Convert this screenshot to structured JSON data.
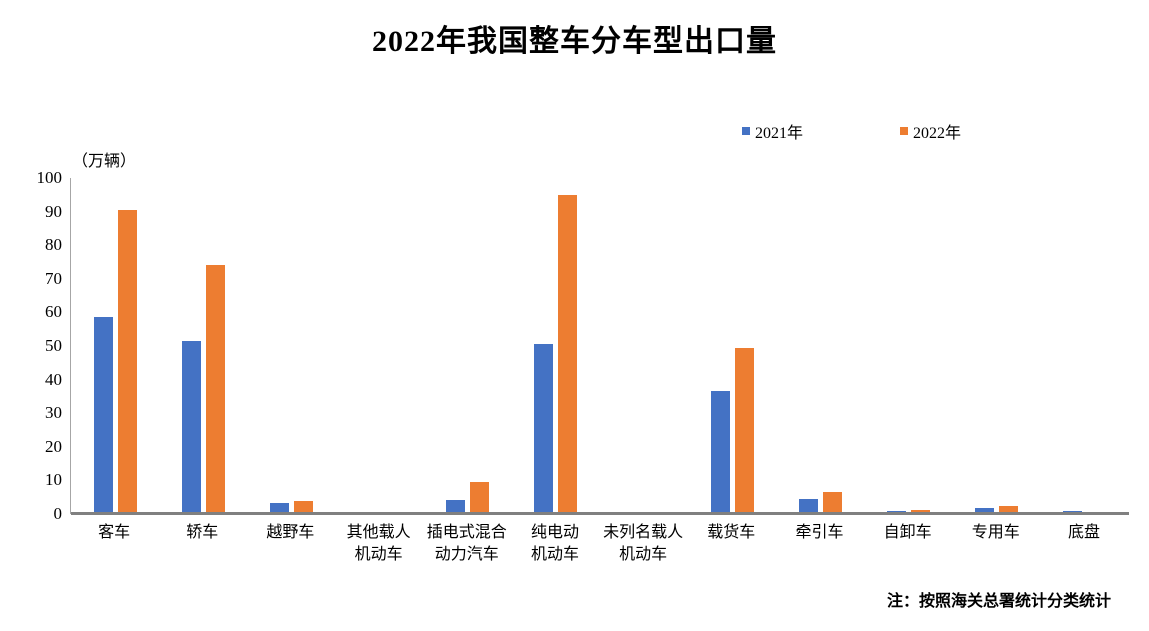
{
  "chart_data": {
    "type": "bar",
    "title": "2022年我国整车分车型出口量",
    "unit_label": "（万辆）",
    "footnote": "注：按照海关总署统计分类统计",
    "ylim": [
      0,
      100
    ],
    "ytick_step": 10,
    "grid": false,
    "legend_position": "top-right",
    "axis_color": "#808080",
    "categories": [
      "客车",
      "轿车",
      "越野车",
      "其他载人\n机动车",
      "插电式混合\n动力汽车",
      "纯电动\n机动车",
      "未列名载人\n机动车",
      "载货车",
      "牵引车",
      "自卸车",
      "专用车",
      "底盘"
    ],
    "series": [
      {
        "name": "2021年",
        "color": "#4472C4",
        "values": [
          58.5,
          51.5,
          3.2,
          0.1,
          4.3,
          50.5,
          0.7,
          36.5,
          4.5,
          0.8,
          1.8,
          0.8
        ]
      },
      {
        "name": "2022年",
        "color": "#ED7D31",
        "values": [
          90.5,
          74,
          4,
          0.1,
          9.5,
          95,
          0.1,
          49.5,
          6.5,
          1.1,
          2.4,
          0.6
        ]
      }
    ]
  }
}
